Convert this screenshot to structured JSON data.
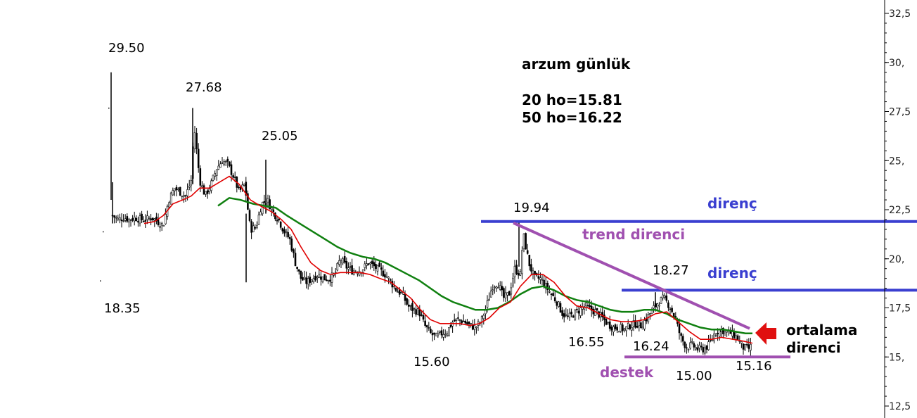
{
  "chart_data": {
    "type": "candlestick",
    "ylim": [
      12.5,
      32.5
    ],
    "y_ticks": [
      "12,5",
      "15,",
      "17,5",
      "20,",
      "22,5",
      "25,",
      "27,5",
      "30,",
      "32,5"
    ],
    "y_tick_values": [
      12.5,
      15,
      17.5,
      20,
      22.5,
      25,
      27.5,
      30,
      32.5
    ],
    "y_axis_position": "right",
    "grid": false,
    "info": {
      "title": "arzum günlük",
      "ma20": "20 ho=15.81",
      "ma50": "50 ho=16.22"
    },
    "price_labels": [
      "29.50",
      "27.68",
      "25.05",
      "18.35",
      "15.60",
      "19.94",
      "16.55",
      "18.27",
      "16.24",
      "15.00",
      "15.16"
    ],
    "annotations": {
      "resistance_upper": "direnç",
      "resistance_lower": "direnç",
      "trend_resistance": "trend direnci",
      "support": "destek",
      "average_resistance_line1": "ortalama",
      "average_resistance_line2": "direnci"
    },
    "levels": {
      "resistance_upper": 21.9,
      "resistance_lower": 18.4,
      "support": 15.0
    },
    "colors": {
      "candles": "#000000",
      "ma20": "#e00000",
      "ma50": "#108010",
      "resistance": "#3a3fd0",
      "trend_and_support": "#a050b0",
      "arrow": "#e01010",
      "annotation_text": "#3a3fd0",
      "annotation_purple": "#a050b0"
    },
    "close_path": [
      [
        0,
        22.2
      ],
      [
        8,
        22.0
      ],
      [
        16,
        22.1
      ],
      [
        24,
        22.0
      ],
      [
        32,
        22.1
      ],
      [
        40,
        22.0
      ],
      [
        48,
        22.0
      ],
      [
        56,
        22.1
      ],
      [
        64,
        21.9
      ],
      [
        72,
        21.7
      ],
      [
        80,
        23.0
      ],
      [
        88,
        23.6
      ],
      [
        96,
        23.4
      ],
      [
        104,
        23.2
      ],
      [
        112,
        24.0
      ],
      [
        116,
        26.8
      ],
      [
        124,
        24.0
      ],
      [
        132,
        23.2
      ],
      [
        140,
        23.8
      ],
      [
        148,
        24.6
      ],
      [
        156,
        25.0
      ],
      [
        164,
        24.8
      ],
      [
        172,
        24.2
      ],
      [
        180,
        23.4
      ],
      [
        188,
        23.8
      ],
      [
        196,
        21.5
      ],
      [
        204,
        21.6
      ],
      [
        212,
        22.8
      ],
      [
        220,
        23.0
      ],
      [
        228,
        22.4
      ],
      [
        236,
        22.0
      ],
      [
        244,
        21.4
      ],
      [
        252,
        21.0
      ],
      [
        260,
        19.8
      ],
      [
        268,
        19.0
      ],
      [
        276,
        18.8
      ],
      [
        284,
        19.0
      ],
      [
        292,
        19.2
      ],
      [
        300,
        19.0
      ],
      [
        308,
        19.0
      ],
      [
        316,
        19.2
      ],
      [
        324,
        20.0
      ],
      [
        332,
        19.6
      ],
      [
        340,
        19.4
      ],
      [
        348,
        19.4
      ],
      [
        356,
        19.5
      ],
      [
        364,
        19.8
      ],
      [
        372,
        19.6
      ],
      [
        380,
        19.4
      ],
      [
        388,
        19.2
      ],
      [
        396,
        18.8
      ],
      [
        404,
        18.4
      ],
      [
        412,
        18.2
      ],
      [
        420,
        17.6
      ],
      [
        428,
        17.4
      ],
      [
        436,
        17.3
      ],
      [
        444,
        16.6
      ],
      [
        452,
        16.2
      ],
      [
        460,
        16.0
      ],
      [
        468,
        16.2
      ],
      [
        476,
        16.3
      ],
      [
        484,
        16.8
      ],
      [
        492,
        16.9
      ],
      [
        500,
        16.8
      ],
      [
        508,
        16.6
      ],
      [
        516,
        16.5
      ],
      [
        524,
        16.8
      ],
      [
        532,
        17.6
      ],
      [
        540,
        18.6
      ],
      [
        548,
        18.8
      ],
      [
        556,
        18.0
      ],
      [
        564,
        18.2
      ],
      [
        572,
        19.5
      ],
      [
        580,
        19.2
      ],
      [
        584,
        21.3
      ],
      [
        592,
        19.8
      ],
      [
        600,
        19.0
      ],
      [
        608,
        19.0
      ],
      [
        616,
        18.6
      ],
      [
        624,
        18.2
      ],
      [
        632,
        17.8
      ],
      [
        640,
        17.2
      ],
      [
        648,
        17.0
      ],
      [
        656,
        17.2
      ],
      [
        664,
        17.4
      ],
      [
        672,
        17.6
      ],
      [
        680,
        17.4
      ],
      [
        688,
        17.3
      ],
      [
        696,
        17.0
      ],
      [
        704,
        16.7
      ],
      [
        712,
        16.5
      ],
      [
        720,
        16.5
      ],
      [
        728,
        16.4
      ],
      [
        736,
        16.6
      ],
      [
        744,
        16.7
      ],
      [
        752,
        16.6
      ],
      [
        760,
        17.0
      ],
      [
        768,
        17.4
      ],
      [
        776,
        17.8
      ],
      [
        784,
        18.0
      ],
      [
        792,
        17.6
      ],
      [
        800,
        17.0
      ],
      [
        808,
        16.0
      ],
      [
        816,
        15.5
      ],
      [
        824,
        15.6
      ],
      [
        832,
        15.4
      ],
      [
        840,
        15.4
      ],
      [
        848,
        15.6
      ],
      [
        856,
        16.2
      ],
      [
        864,
        16.4
      ],
      [
        872,
        16.3
      ],
      [
        880,
        16.2
      ],
      [
        888,
        16.0
      ],
      [
        896,
        15.5
      ],
      [
        904,
        15.4
      ],
      [
        910,
        15.6
      ]
    ],
    "ma20_path": [
      [
        45,
        21.8
      ],
      [
        60,
        21.9
      ],
      [
        72,
        22.2
      ],
      [
        86,
        22.8
      ],
      [
        100,
        23.0
      ],
      [
        112,
        23.2
      ],
      [
        124,
        23.6
      ],
      [
        138,
        23.6
      ],
      [
        152,
        23.9
      ],
      [
        166,
        24.2
      ],
      [
        180,
        23.8
      ],
      [
        196,
        23.0
      ],
      [
        210,
        22.7
      ],
      [
        226,
        22.4
      ],
      [
        240,
        22.0
      ],
      [
        254,
        21.5
      ],
      [
        268,
        20.6
      ],
      [
        282,
        19.8
      ],
      [
        296,
        19.4
      ],
      [
        310,
        19.2
      ],
      [
        324,
        19.3
      ],
      [
        338,
        19.3
      ],
      [
        352,
        19.3
      ],
      [
        366,
        19.2
      ],
      [
        380,
        19.0
      ],
      [
        396,
        18.8
      ],
      [
        410,
        18.4
      ],
      [
        424,
        18.0
      ],
      [
        438,
        17.4
      ],
      [
        452,
        16.9
      ],
      [
        466,
        16.7
      ],
      [
        480,
        16.7
      ],
      [
        494,
        16.7
      ],
      [
        508,
        16.6
      ],
      [
        522,
        16.7
      ],
      [
        536,
        17.0
      ],
      [
        550,
        17.5
      ],
      [
        566,
        17.8
      ],
      [
        580,
        18.6
      ],
      [
        596,
        19.2
      ],
      [
        612,
        19.2
      ],
      [
        628,
        18.8
      ],
      [
        644,
        18.1
      ],
      [
        660,
        17.6
      ],
      [
        676,
        17.5
      ],
      [
        692,
        17.2
      ],
      [
        708,
        16.9
      ],
      [
        724,
        16.8
      ],
      [
        740,
        16.8
      ],
      [
        756,
        16.9
      ],
      [
        772,
        17.2
      ],
      [
        788,
        17.3
      ],
      [
        804,
        16.8
      ],
      [
        820,
        16.3
      ],
      [
        836,
        15.9
      ],
      [
        852,
        15.9
      ],
      [
        866,
        16.0
      ],
      [
        882,
        15.9
      ],
      [
        898,
        15.8
      ],
      [
        910,
        15.7
      ]
    ],
    "ma50_path": [
      [
        150,
        22.7
      ],
      [
        166,
        23.1
      ],
      [
        182,
        23.0
      ],
      [
        200,
        22.8
      ],
      [
        216,
        22.7
      ],
      [
        232,
        22.6
      ],
      [
        248,
        22.2
      ],
      [
        266,
        21.8
      ],
      [
        284,
        21.4
      ],
      [
        302,
        21.0
      ],
      [
        320,
        20.6
      ],
      [
        338,
        20.3
      ],
      [
        356,
        20.1
      ],
      [
        372,
        20.0
      ],
      [
        388,
        19.8
      ],
      [
        404,
        19.5
      ],
      [
        420,
        19.2
      ],
      [
        436,
        18.9
      ],
      [
        452,
        18.5
      ],
      [
        468,
        18.1
      ],
      [
        484,
        17.8
      ],
      [
        500,
        17.6
      ],
      [
        516,
        17.4
      ],
      [
        532,
        17.4
      ],
      [
        548,
        17.5
      ],
      [
        564,
        17.8
      ],
      [
        580,
        18.2
      ],
      [
        596,
        18.5
      ],
      [
        612,
        18.6
      ],
      [
        628,
        18.4
      ],
      [
        644,
        18.1
      ],
      [
        660,
        17.9
      ],
      [
        676,
        17.8
      ],
      [
        692,
        17.6
      ],
      [
        708,
        17.4
      ],
      [
        724,
        17.3
      ],
      [
        740,
        17.3
      ],
      [
        756,
        17.4
      ],
      [
        772,
        17.4
      ],
      [
        788,
        17.2
      ],
      [
        804,
        16.9
      ],
      [
        820,
        16.7
      ],
      [
        836,
        16.5
      ],
      [
        852,
        16.4
      ],
      [
        868,
        16.4
      ],
      [
        884,
        16.3
      ],
      [
        900,
        16.2
      ],
      [
        910,
        16.2
      ]
    ]
  }
}
